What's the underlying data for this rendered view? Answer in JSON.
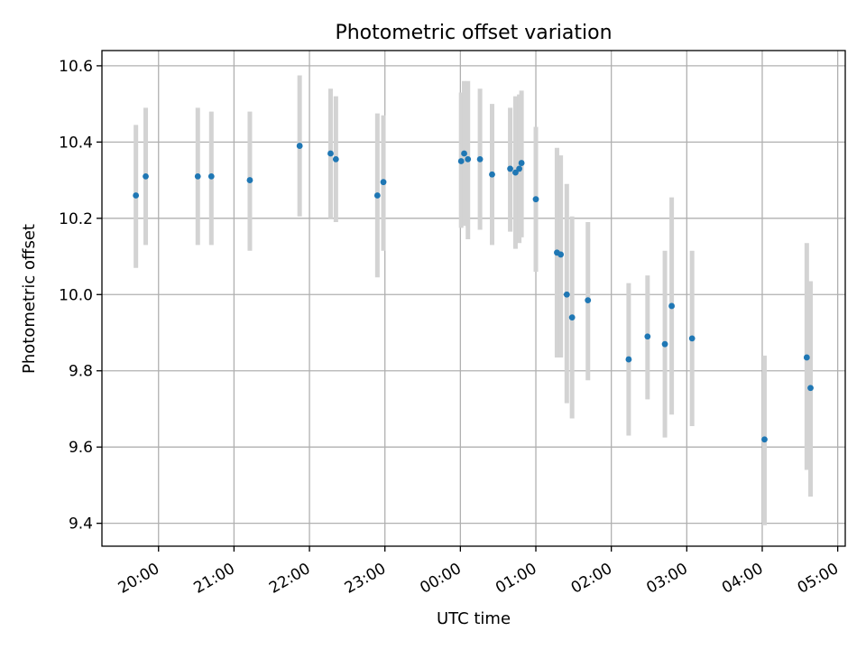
{
  "chart_data": {
    "type": "scatter",
    "title": "Photometric offset variation",
    "xlabel": "UTC time",
    "ylabel": "Photometric offset",
    "x_unit": "hours",
    "xlim": [
      19.25,
      29.1
    ],
    "ylim": [
      9.34,
      10.64
    ],
    "x_ticks": [
      {
        "value": 20,
        "label": "20:00"
      },
      {
        "value": 21,
        "label": "21:00"
      },
      {
        "value": 22,
        "label": "22:00"
      },
      {
        "value": 23,
        "label": "23:00"
      },
      {
        "value": 24,
        "label": "00:00"
      },
      {
        "value": 25,
        "label": "01:00"
      },
      {
        "value": 26,
        "label": "02:00"
      },
      {
        "value": 27,
        "label": "03:00"
      },
      {
        "value": 28,
        "label": "04:00"
      },
      {
        "value": 29,
        "label": "05:00"
      }
    ],
    "y_ticks": [
      {
        "value": 9.4,
        "label": "9.4"
      },
      {
        "value": 9.6,
        "label": "9.6"
      },
      {
        "value": 9.8,
        "label": "9.8"
      },
      {
        "value": 10.0,
        "label": "10.0"
      },
      {
        "value": 10.2,
        "label": "10.2"
      },
      {
        "value": 10.4,
        "label": "10.4"
      },
      {
        "value": 10.6,
        "label": "10.6"
      }
    ],
    "grid": true,
    "colors": {
      "point": "#1f77b4",
      "errorbar": "#d3d3d3",
      "grid": "#b0b0b0"
    },
    "points": [
      {
        "x": 19.7,
        "y": 10.26,
        "ylo": 10.07,
        "yhi": 10.445
      },
      {
        "x": 19.83,
        "y": 10.31,
        "ylo": 10.13,
        "yhi": 10.49
      },
      {
        "x": 20.52,
        "y": 10.31,
        "ylo": 10.13,
        "yhi": 10.49
      },
      {
        "x": 20.7,
        "y": 10.31,
        "ylo": 10.13,
        "yhi": 10.48
      },
      {
        "x": 21.21,
        "y": 10.3,
        "ylo": 10.115,
        "yhi": 10.48
      },
      {
        "x": 21.87,
        "y": 10.39,
        "ylo": 10.205,
        "yhi": 10.575
      },
      {
        "x": 22.28,
        "y": 10.37,
        "ylo": 10.2,
        "yhi": 10.54
      },
      {
        "x": 22.35,
        "y": 10.355,
        "ylo": 10.19,
        "yhi": 10.52
      },
      {
        "x": 22.9,
        "y": 10.26,
        "ylo": 10.045,
        "yhi": 10.475
      },
      {
        "x": 22.98,
        "y": 10.295,
        "ylo": 10.115,
        "yhi": 10.47
      },
      {
        "x": 24.01,
        "y": 10.35,
        "ylo": 10.175,
        "yhi": 10.53
      },
      {
        "x": 24.05,
        "y": 10.37,
        "ylo": 10.18,
        "yhi": 10.56
      },
      {
        "x": 24.1,
        "y": 10.355,
        "ylo": 10.145,
        "yhi": 10.56
      },
      {
        "x": 24.26,
        "y": 10.355,
        "ylo": 10.17,
        "yhi": 10.54
      },
      {
        "x": 24.42,
        "y": 10.315,
        "ylo": 10.13,
        "yhi": 10.5
      },
      {
        "x": 24.66,
        "y": 10.33,
        "ylo": 10.165,
        "yhi": 10.49
      },
      {
        "x": 24.73,
        "y": 10.32,
        "ylo": 10.12,
        "yhi": 10.52
      },
      {
        "x": 24.78,
        "y": 10.33,
        "ylo": 10.135,
        "yhi": 10.525
      },
      {
        "x": 24.81,
        "y": 10.345,
        "ylo": 10.15,
        "yhi": 10.535
      },
      {
        "x": 25.0,
        "y": 10.25,
        "ylo": 10.06,
        "yhi": 10.44
      },
      {
        "x": 25.28,
        "y": 10.11,
        "ylo": 9.835,
        "yhi": 10.385
      },
      {
        "x": 25.33,
        "y": 10.105,
        "ylo": 9.835,
        "yhi": 10.365
      },
      {
        "x": 25.41,
        "y": 10.0,
        "ylo": 9.715,
        "yhi": 10.29
      },
      {
        "x": 25.48,
        "y": 9.94,
        "ylo": 9.675,
        "yhi": 10.205
      },
      {
        "x": 25.69,
        "y": 9.985,
        "ylo": 9.775,
        "yhi": 10.19
      },
      {
        "x": 26.23,
        "y": 9.83,
        "ylo": 9.63,
        "yhi": 10.03
      },
      {
        "x": 26.48,
        "y": 9.89,
        "ylo": 9.725,
        "yhi": 10.05
      },
      {
        "x": 26.71,
        "y": 9.87,
        "ylo": 9.625,
        "yhi": 10.115
      },
      {
        "x": 26.8,
        "y": 9.97,
        "ylo": 9.685,
        "yhi": 10.255
      },
      {
        "x": 27.07,
        "y": 9.885,
        "ylo": 9.655,
        "yhi": 10.115
      },
      {
        "x": 28.03,
        "y": 9.62,
        "ylo": 9.395,
        "yhi": 9.84
      },
      {
        "x": 28.59,
        "y": 9.835,
        "ylo": 9.54,
        "yhi": 10.135
      },
      {
        "x": 28.64,
        "y": 9.755,
        "ylo": 9.47,
        "yhi": 10.035
      }
    ]
  }
}
